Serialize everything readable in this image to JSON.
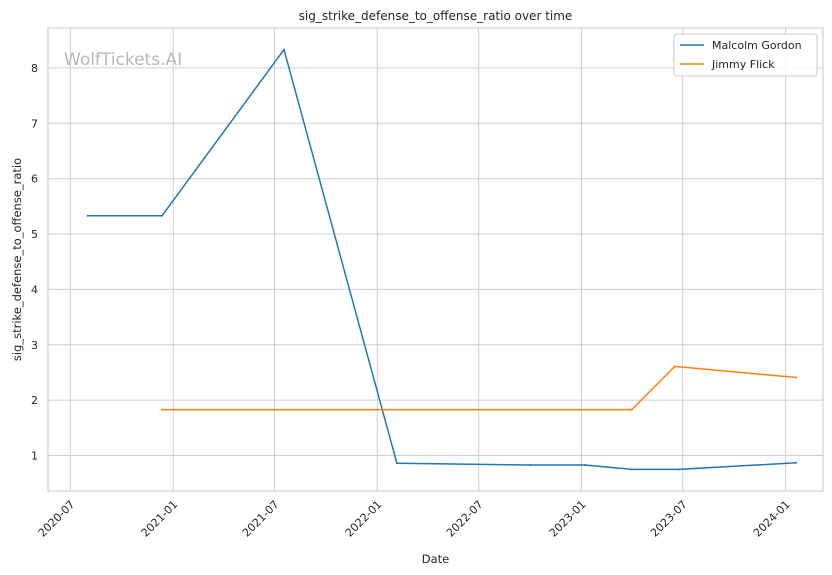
{
  "chart_data": {
    "type": "line",
    "title": "sig_strike_defense_to_offense_ratio over time",
    "xlabel": "Date",
    "ylabel": "sig_strike_defense_to_offense_ratio",
    "watermark": "WolfTickets.AI",
    "x_ticks": [
      "2020-07",
      "2021-01",
      "2021-07",
      "2022-01",
      "2022-07",
      "2023-01",
      "2023-07",
      "2024-01"
    ],
    "y_ticks": [
      1,
      2,
      3,
      4,
      5,
      6,
      7,
      8
    ],
    "xlim": [
      "2020-05-22",
      "2024-03-08"
    ],
    "ylim": [
      0.36,
      8.72
    ],
    "grid": true,
    "legend_position": "top-right",
    "series": [
      {
        "name": "Malcolm Gordon",
        "color": "#1f77b4",
        "points": [
          {
            "x": "2020-08-01",
            "y": 5.33
          },
          {
            "x": "2020-12-12",
            "y": 5.33
          },
          {
            "x": "2021-07-18",
            "y": 8.33
          },
          {
            "x": "2022-02-05",
            "y": 0.86
          },
          {
            "x": "2022-10-01",
            "y": 0.83
          },
          {
            "x": "2023-01-07",
            "y": 0.83
          },
          {
            "x": "2023-04-01",
            "y": 0.75
          },
          {
            "x": "2023-06-24",
            "y": 0.75
          },
          {
            "x": "2024-01-20",
            "y": 0.87
          }
        ]
      },
      {
        "name": "Jimmy Flick",
        "color": "#ff7f0e",
        "points": [
          {
            "x": "2020-12-12",
            "y": 1.83
          },
          {
            "x": "2023-04-01",
            "y": 1.83
          },
          {
            "x": "2023-06-17",
            "y": 2.61
          },
          {
            "x": "2024-01-20",
            "y": 2.41
          }
        ]
      }
    ]
  }
}
